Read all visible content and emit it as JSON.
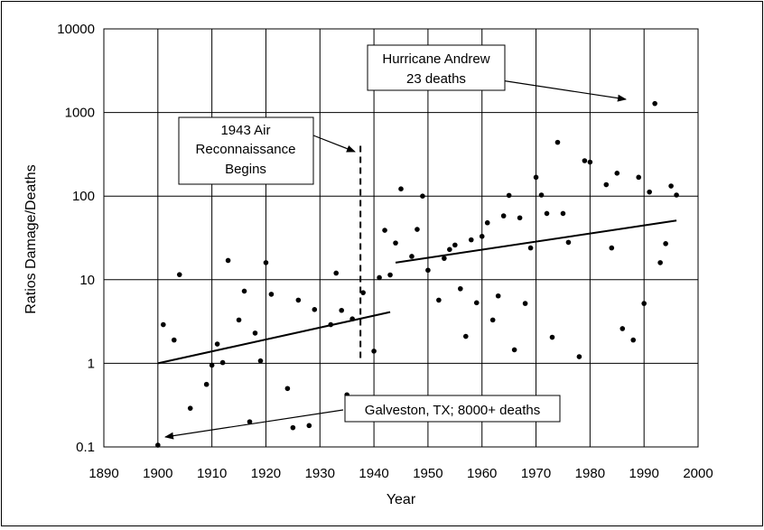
{
  "chart_data": {
    "type": "scatter",
    "title": "",
    "xlabel": "Year",
    "ylabel": "Ratios Damage/Deaths",
    "y_scale": "log",
    "xlim": [
      1890,
      2000
    ],
    "ylim": [
      0.1,
      10000
    ],
    "grid": true,
    "x_ticks": [
      "1890",
      "1900",
      "1910",
      "1920",
      "1930",
      "1940",
      "1950",
      "1960",
      "1970",
      "1980",
      "1990",
      "2000"
    ],
    "y_ticks": [
      "0.1",
      "1",
      "10",
      "100",
      "1000",
      "10000"
    ],
    "series": [
      {
        "points": [
          [
            1900,
            0.105
          ],
          [
            1901,
            2.9
          ],
          [
            1903,
            1.9
          ],
          [
            1904,
            11.5
          ],
          [
            1906,
            0.29
          ],
          [
            1909,
            0.56
          ],
          [
            1910,
            0.95
          ],
          [
            1911,
            1.7
          ],
          [
            1912,
            1.02
          ],
          [
            1913,
            17
          ],
          [
            1915,
            3.3
          ],
          [
            1916,
            7.3
          ],
          [
            1918,
            2.3
          ],
          [
            1917,
            0.2
          ],
          [
            1919,
            1.07
          ],
          [
            1920,
            16
          ],
          [
            1921,
            6.7
          ],
          [
            1924,
            0.5
          ],
          [
            1925,
            0.17
          ],
          [
            1926,
            5.7
          ],
          [
            1928,
            0.18
          ],
          [
            1929,
            4.4
          ],
          [
            1932,
            2.9
          ],
          [
            1933,
            12
          ],
          [
            1934,
            4.3
          ],
          [
            1935,
            0.42
          ],
          [
            1936,
            3.4
          ],
          [
            1938,
            7
          ],
          [
            1940,
            1.4
          ],
          [
            1941,
            10.6
          ],
          [
            1942,
            39
          ],
          [
            1943,
            11.4
          ],
          [
            1944,
            27.5
          ],
          [
            1945,
            122
          ],
          [
            1947,
            19
          ],
          [
            1948,
            40
          ],
          [
            1949,
            100
          ],
          [
            1950,
            13
          ],
          [
            1952,
            5.7
          ],
          [
            1953,
            18
          ],
          [
            1954,
            23
          ],
          [
            1955,
            26
          ],
          [
            1956,
            7.8
          ],
          [
            1957,
            2.1
          ],
          [
            1958,
            30
          ],
          [
            1959,
            5.3
          ],
          [
            1960,
            33
          ],
          [
            1961,
            48
          ],
          [
            1962,
            3.3
          ],
          [
            1963,
            6.4
          ],
          [
            1964,
            58
          ],
          [
            1965,
            102
          ],
          [
            1966,
            1.45
          ],
          [
            1967,
            55
          ],
          [
            1968,
            5.2
          ],
          [
            1969,
            24
          ],
          [
            1970,
            168
          ],
          [
            1971,
            103
          ],
          [
            1972,
            62
          ],
          [
            1973,
            2.05
          ],
          [
            1974,
            440
          ],
          [
            1975,
            62
          ],
          [
            1976,
            28
          ],
          [
            1978,
            1.2
          ],
          [
            1979,
            265
          ],
          [
            1980,
            255
          ],
          [
            1983,
            137
          ],
          [
            1984,
            24
          ],
          [
            1985,
            188
          ],
          [
            1986,
            2.6
          ],
          [
            1988,
            1.9
          ],
          [
            1989,
            168
          ],
          [
            1990,
            5.2
          ],
          [
            1991,
            112
          ],
          [
            1992,
            1280
          ],
          [
            1993,
            16
          ],
          [
            1994,
            27
          ],
          [
            1995,
            132
          ],
          [
            1996,
            103
          ]
        ]
      }
    ],
    "trendlines": [
      {
        "x": [
          1900,
          1943
        ],
        "y": [
          1.0,
          4.1
        ]
      },
      {
        "x": [
          1944,
          1996
        ],
        "y": [
          16,
          51
        ]
      }
    ],
    "markers": [
      {
        "type": "vline",
        "x": 1937.5,
        "y_range": [
          1.15,
          400
        ],
        "style": "dashed"
      }
    ],
    "annotations": [
      {
        "id": "andrew",
        "lines": [
          "Hurricane Andrew",
          "23 deaths"
        ]
      },
      {
        "id": "recon",
        "lines": [
          "1943 Air",
          "Reconnaissance",
          "Begins"
        ]
      },
      {
        "id": "galveston",
        "lines": [
          "Galveston, TX; 8000+ deaths"
        ]
      }
    ]
  }
}
